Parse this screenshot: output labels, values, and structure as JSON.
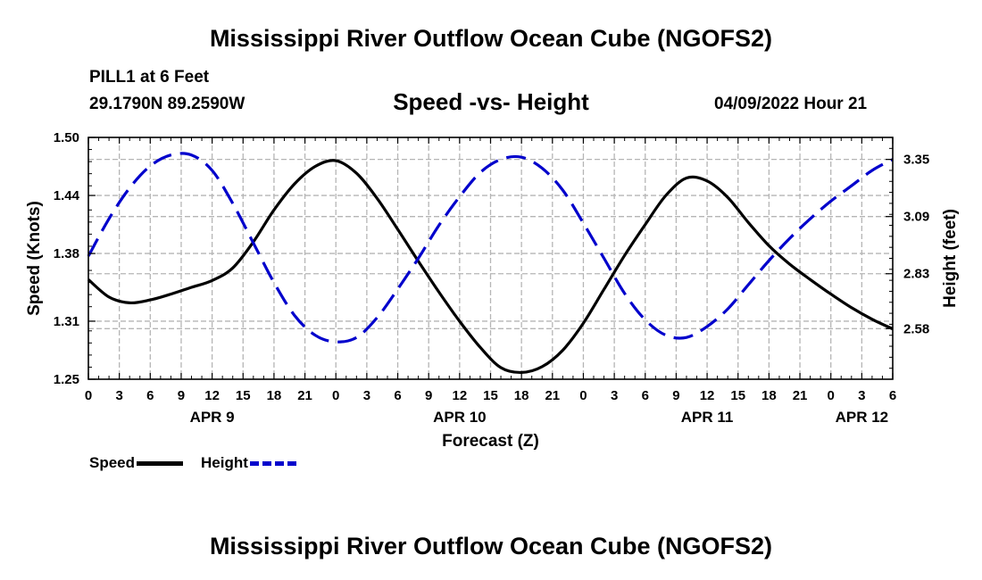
{
  "header": {
    "title": "Mississippi River Outflow Ocean Cube (NGOFS2)",
    "station": "PILL1 at 6 Feet",
    "coordinates": "29.1790N  89.2590W",
    "subtitle": "Speed -vs- Height",
    "datetime": "04/09/2022 Hour 21"
  },
  "footer": {
    "title": "Mississippi River Outflow Ocean Cube (NGOFS2)"
  },
  "legend": {
    "speed_label": "Speed",
    "height_label": "Height"
  },
  "colors": {
    "speed": "#000000",
    "height": "#0000cc",
    "grid": "#b5b5b5"
  },
  "chart_data": {
    "type": "line",
    "xlabel": "Forecast (Z)",
    "ylabel": "Speed (Knots)",
    "y2label": "Height (feet)",
    "x_unit": "hours from 2022-04-09 00Z",
    "xlim": [
      0,
      78
    ],
    "ylim": [
      1.25,
      1.5
    ],
    "y2lim": [
      2.35,
      3.45
    ],
    "x_tick_values": [
      0,
      3,
      6,
      9,
      12,
      15,
      18,
      21,
      24,
      27,
      30,
      33,
      36,
      39,
      42,
      45,
      48,
      51,
      54,
      57,
      60,
      63,
      66,
      69,
      72,
      75,
      78
    ],
    "x_tick_labels": [
      "0",
      "3",
      "6",
      "9",
      "12",
      "15",
      "18",
      "21",
      "0",
      "3",
      "6",
      "9",
      "12",
      "15",
      "18",
      "21",
      "0",
      "3",
      "6",
      "9",
      "12",
      "15",
      "18",
      "21",
      "0",
      "3",
      "6"
    ],
    "date_labels": [
      {
        "x": 12,
        "label": "APR 9"
      },
      {
        "x": 36,
        "label": "APR 10"
      },
      {
        "x": 60,
        "label": "APR 11"
      },
      {
        "x": 75,
        "label": "APR 12"
      }
    ],
    "y_ticks": [
      1.25,
      1.31,
      1.38,
      1.44,
      1.5
    ],
    "y_tick_labels": [
      "1.25",
      "1.31",
      "1.38",
      "1.44",
      "1.50"
    ],
    "y2_ticks": [
      2.58,
      2.83,
      3.09,
      3.35
    ],
    "y2_tick_labels": [
      "2.58",
      "2.83",
      "3.09",
      "3.35"
    ],
    "series": [
      {
        "name": "Speed",
        "axis": "left",
        "style": "solid",
        "x": [
          0,
          2,
          4,
          6,
          8,
          10,
          12,
          14,
          16,
          18,
          20,
          22,
          24,
          26,
          28,
          30,
          32,
          34,
          36,
          38,
          40,
          42,
          44,
          46,
          48,
          50,
          52,
          54,
          56,
          58,
          60,
          62,
          64,
          66,
          68,
          70,
          72,
          74,
          76,
          78
        ],
        "values": [
          1.353,
          1.335,
          1.329,
          1.332,
          1.338,
          1.345,
          1.352,
          1.365,
          1.392,
          1.425,
          1.452,
          1.47,
          1.476,
          1.463,
          1.437,
          1.405,
          1.372,
          1.34,
          1.31,
          1.283,
          1.262,
          1.257,
          1.263,
          1.28,
          1.308,
          1.343,
          1.378,
          1.41,
          1.44,
          1.458,
          1.455,
          1.438,
          1.412,
          1.388,
          1.369,
          1.353,
          1.338,
          1.324,
          1.312,
          1.302
        ]
      },
      {
        "name": "Height",
        "axis": "right",
        "style": "dashed",
        "x": [
          0,
          2,
          4,
          6,
          8,
          10,
          12,
          14,
          16,
          18,
          20,
          22,
          24,
          26,
          28,
          30,
          32,
          34,
          36,
          38,
          40,
          42,
          44,
          46,
          48,
          50,
          52,
          54,
          56,
          58,
          60,
          62,
          64,
          66,
          68,
          70,
          72,
          74,
          76,
          78
        ],
        "values": [
          2.91,
          3.08,
          3.22,
          3.32,
          3.37,
          3.37,
          3.3,
          3.15,
          2.97,
          2.79,
          2.64,
          2.55,
          2.52,
          2.54,
          2.63,
          2.76,
          2.9,
          3.05,
          3.18,
          3.29,
          3.35,
          3.36,
          3.31,
          3.21,
          3.06,
          2.9,
          2.74,
          2.62,
          2.55,
          2.54,
          2.59,
          2.67,
          2.78,
          2.89,
          2.99,
          3.08,
          3.16,
          3.23,
          3.3,
          3.35
        ]
      }
    ]
  }
}
